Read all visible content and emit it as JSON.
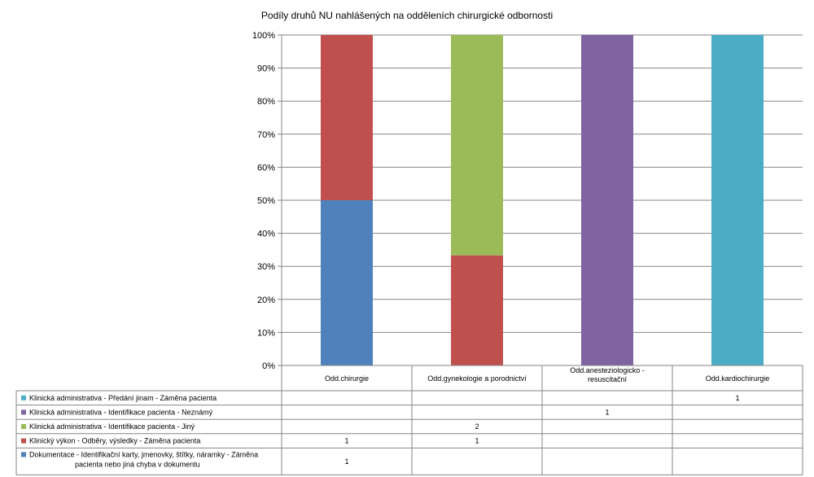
{
  "chart_data": {
    "type": "bar",
    "stacked": true,
    "percent_stacked": true,
    "title": "Podíly druhů NU  nahlášených na odděleních chirurgické odbornosti",
    "categories": [
      [
        "Odd.chirurgie"
      ],
      [
        "Odd.gynekologie a porodnictví"
      ],
      [
        "Odd.anesteziologicko -",
        "resuscitační"
      ],
      [
        "Odd.kardiochirurgie"
      ]
    ],
    "y_ticks": [
      "0%",
      "10%",
      "20%",
      "30%",
      "40%",
      "50%",
      "60%",
      "70%",
      "80%",
      "90%",
      "100%"
    ],
    "ylim": [
      0,
      100
    ],
    "grid": true,
    "legend_placement": "data-table-left",
    "series": [
      {
        "name": [
          "Dokumentace - Identifikační karty, jmenovky, štítky, náramky - Záměna",
          "pacienta nebo jiná chyba v dokumentu"
        ],
        "color": "#4F81BD",
        "values": [
          1,
          0,
          0,
          0
        ],
        "labels": [
          "1",
          "",
          "",
          ""
        ]
      },
      {
        "name": [
          "Klinický výkon - Odběry, výsledky - Záměna pacienta"
        ],
        "color": "#C0504D",
        "values": [
          1,
          1,
          0,
          0
        ],
        "labels": [
          "1",
          "1",
          "",
          ""
        ]
      },
      {
        "name": [
          "Klinická administrativa - Identifikace pacienta - Jiný"
        ],
        "color": "#9BBB59",
        "values": [
          0,
          2,
          0,
          0
        ],
        "labels": [
          "",
          "2",
          "",
          ""
        ]
      },
      {
        "name": [
          "Klinická administrativa - Identifikace pacienta - Neznámý"
        ],
        "color": "#8064A2",
        "values": [
          0,
          0,
          1,
          0
        ],
        "labels": [
          "",
          "",
          "1",
          ""
        ]
      },
      {
        "name": [
          "Klinická administrativa - Předání jinam - Záměna pacienta"
        ],
        "color": "#4BACC6",
        "values": [
          0,
          0,
          0,
          1
        ],
        "labels": [
          "",
          "",
          "",
          "1"
        ]
      }
    ]
  }
}
